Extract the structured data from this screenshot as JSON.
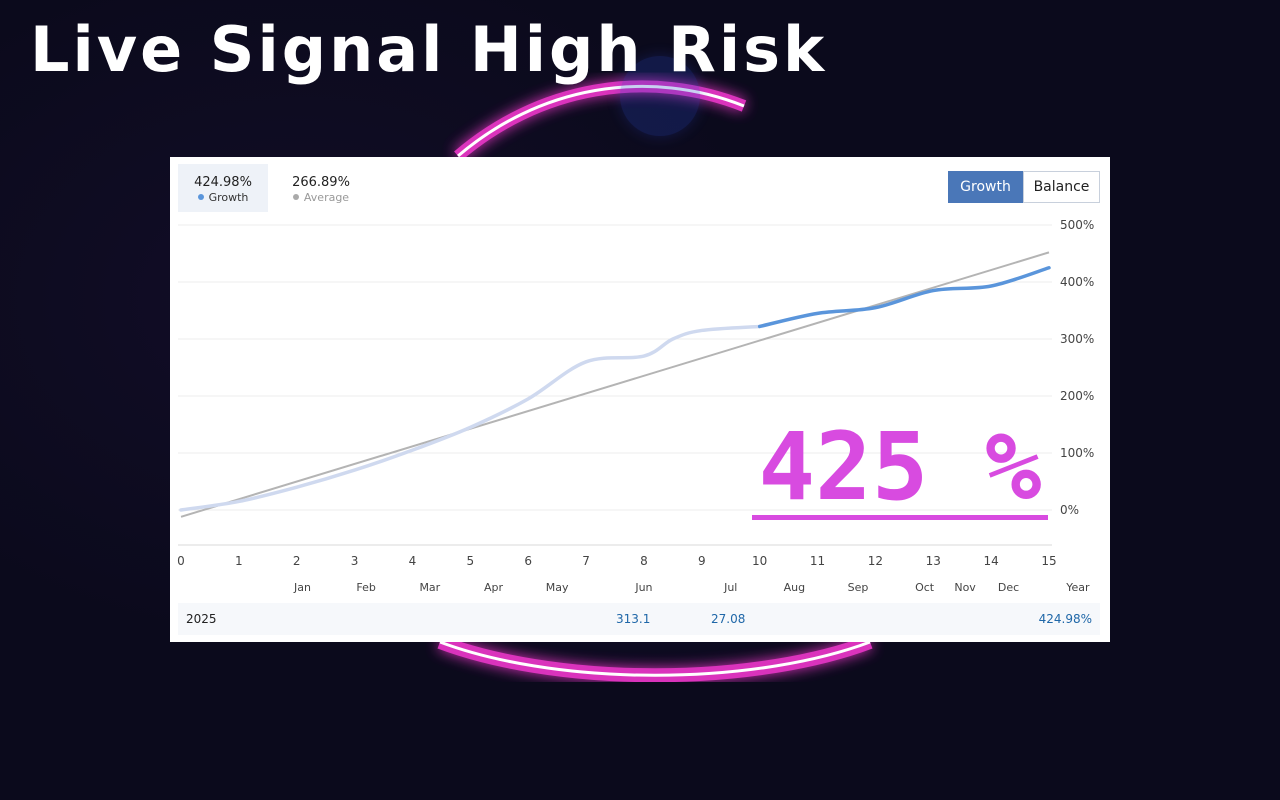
{
  "headline": "Live Signal High Risk",
  "stats": {
    "growth": {
      "value": "424.98%",
      "label": "Growth"
    },
    "average": {
      "value": "266.89%",
      "label": "Average"
    }
  },
  "toggle": {
    "growth_label": "Growth",
    "balance_label": "Balance"
  },
  "colors": {
    "growth_line": "#5a95db",
    "growth_line_faded": "#cfd9ef",
    "average_line": "#b4b4b4",
    "accent": "#d84be0",
    "active_tab": "#4a77b8"
  },
  "overlay": {
    "big_value": "425 %"
  },
  "chart_data": {
    "type": "line",
    "y_ticks": [
      "500%",
      "400%",
      "300%",
      "200%",
      "100%",
      "0%"
    ],
    "y_tick_values": [
      500,
      400,
      300,
      200,
      100,
      0
    ],
    "x_ticks": [
      "0",
      "1",
      "2",
      "3",
      "4",
      "5",
      "6",
      "7",
      "8",
      "9",
      "10",
      "11",
      "12",
      "13",
      "14",
      "15"
    ],
    "x_range": [
      0,
      15
    ],
    "y_range": [
      -60,
      500
    ],
    "grid": true,
    "months": [
      "Jan",
      "Feb",
      "Mar",
      "Apr",
      "May",
      "Jun",
      "Jul",
      "Aug",
      "Sep",
      "Oct",
      "Nov",
      "Dec",
      "Year"
    ],
    "month_positions": [
      2.1,
      3.2,
      4.3,
      5.4,
      6.5,
      8.0,
      9.5,
      10.6,
      11.7,
      12.85,
      13.55,
      14.3,
      15.5
    ],
    "series": [
      {
        "name": "Growth",
        "x": [
          0,
          1,
          2,
          3,
          4,
          5,
          6,
          7,
          8,
          8.5,
          9,
          10,
          11,
          12,
          13,
          14,
          15
        ],
        "y": [
          0,
          15,
          40,
          70,
          105,
          145,
          195,
          260,
          270,
          300,
          315,
          322,
          345,
          355,
          385,
          393,
          425
        ],
        "highlight_from_x": 10
      },
      {
        "name": "Average",
        "x": [
          0,
          15
        ],
        "y": [
          -12,
          452
        ]
      }
    ]
  },
  "summary": {
    "year": "2025",
    "jun_value": "313.1",
    "jul_value": "27.08",
    "year_total": "424.98%"
  }
}
